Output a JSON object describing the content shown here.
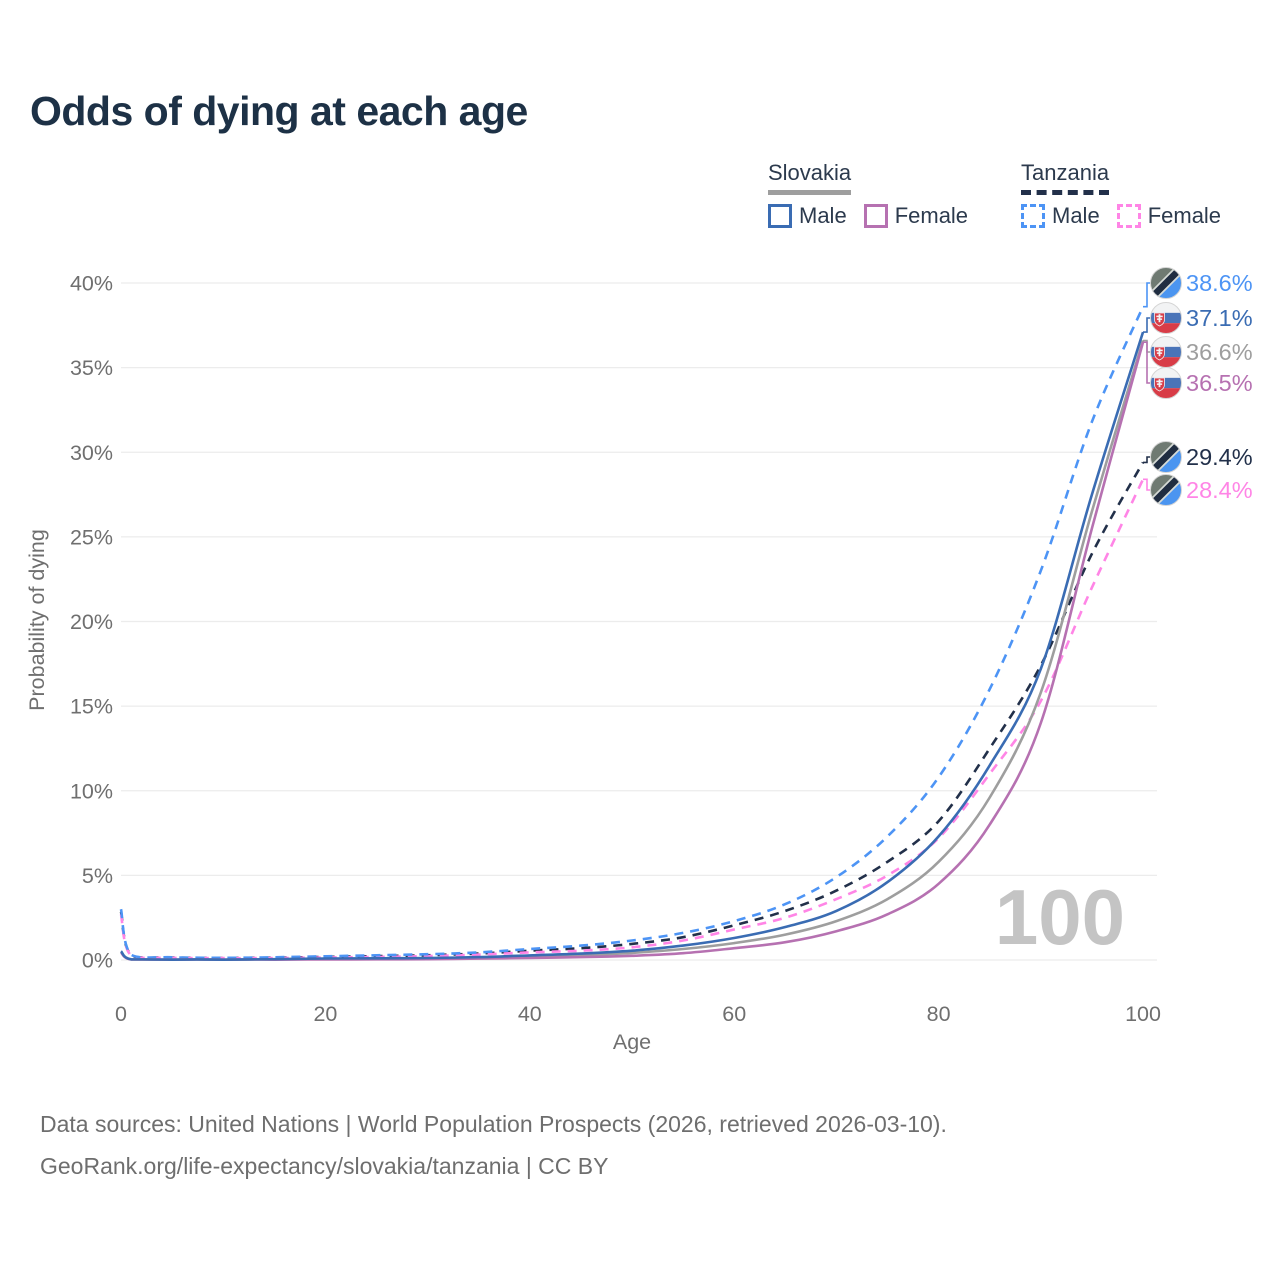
{
  "title": "Odds of dying at each age",
  "watermark": "100",
  "colors": {
    "title": "#1d3146",
    "axis_text": "#6f6f6f",
    "grid": "#ececec",
    "watermark": "#c4c4c4",
    "slovakia_line": "#9e9e9e",
    "tanzania_line": "#22304a",
    "slovakia_male": "#3a6cb3",
    "slovakia_female": "#b671b1",
    "tanzania_male": "#4d94f5",
    "tanzania_female": "#ff85e6"
  },
  "legend": {
    "groups": [
      {
        "id": "slovakia",
        "label": "Slovakia",
        "line_style": "solid",
        "line_color": "#9e9e9e",
        "items": [
          {
            "id": "slovakia-male",
            "label": "Male",
            "color": "#3a6cb3",
            "dashed": false
          },
          {
            "id": "slovakia-female",
            "label": "Female",
            "color": "#b671b1",
            "dashed": false
          }
        ]
      },
      {
        "id": "tanzania",
        "label": "Tanzania",
        "line_style": "dashed",
        "line_color": "#22304a",
        "items": [
          {
            "id": "tanzania-male",
            "label": "Male",
            "color": "#4d94f5",
            "dashed": true
          },
          {
            "id": "tanzania-female",
            "label": "Female",
            "color": "#ff85e6",
            "dashed": true
          }
        ]
      }
    ]
  },
  "chart_data": {
    "type": "line",
    "title": "Odds of dying at each age",
    "xlabel": "Age",
    "ylabel": "Probability of dying",
    "xlim": [
      0,
      100
    ],
    "ylim": [
      0,
      40
    ],
    "x_ticks": [
      0,
      20,
      40,
      60,
      80,
      100
    ],
    "y_ticks": [
      0,
      5,
      10,
      15,
      20,
      25,
      30,
      35,
      40
    ],
    "y_tick_suffix": "%",
    "grid": true,
    "legend_position": "top-right",
    "hovered_age": "100",
    "ages": [
      0,
      1,
      5,
      10,
      15,
      20,
      25,
      30,
      35,
      40,
      45,
      50,
      55,
      60,
      65,
      70,
      75,
      80,
      85,
      90,
      95,
      100
    ],
    "series": [
      {
        "name": "Tanzania Both",
        "country": "Tanzania",
        "sex": "Both",
        "color": "#22304a",
        "dashed": true,
        "end_value": 29.4,
        "end_label": "29.4%",
        "values": [
          2.85,
          0.28,
          0.15,
          0.12,
          0.14,
          0.18,
          0.23,
          0.28,
          0.38,
          0.55,
          0.7,
          0.95,
          1.35,
          2.05,
          2.9,
          4.1,
          5.8,
          8.2,
          12.5,
          17.4,
          24.0,
          29.4
        ]
      },
      {
        "name": "Tanzania Female",
        "country": "Tanzania",
        "sex": "Female",
        "color": "#ff85e6",
        "dashed": true,
        "end_value": 28.4,
        "end_label": "28.4%",
        "values": [
          2.7,
          0.26,
          0.13,
          0.11,
          0.12,
          0.15,
          0.18,
          0.23,
          0.32,
          0.45,
          0.55,
          0.75,
          1.15,
          1.8,
          2.5,
          3.6,
          5.0,
          7.2,
          11.0,
          15.3,
          22.0,
          28.4
        ]
      },
      {
        "name": "Tanzania Male",
        "country": "Tanzania",
        "sex": "Male",
        "color": "#4d94f5",
        "dashed": true,
        "end_value": 38.6,
        "end_label": "38.6%",
        "values": [
          3.0,
          0.3,
          0.16,
          0.13,
          0.16,
          0.22,
          0.28,
          0.34,
          0.45,
          0.65,
          0.85,
          1.15,
          1.6,
          2.3,
          3.3,
          4.9,
          7.3,
          10.8,
          16.0,
          23.0,
          31.8,
          38.6
        ]
      },
      {
        "name": "Slovakia Both",
        "country": "Slovakia",
        "sex": "Both",
        "color": "#9e9e9e",
        "dashed": false,
        "end_value": 36.6,
        "end_label": "36.6%",
        "values": [
          0.49,
          0.035,
          0.02,
          0.02,
          0.04,
          0.06,
          0.07,
          0.09,
          0.13,
          0.2,
          0.28,
          0.42,
          0.65,
          1.0,
          1.5,
          2.3,
          3.6,
          5.8,
          9.6,
          15.8,
          26.5,
          36.6
        ]
      },
      {
        "name": "Slovakia Female",
        "country": "Slovakia",
        "sex": "Female",
        "color": "#b671b1",
        "dashed": false,
        "end_value": 36.5,
        "end_label": "36.5%",
        "values": [
          0.45,
          0.03,
          0.015,
          0.015,
          0.02,
          0.03,
          0.04,
          0.05,
          0.08,
          0.12,
          0.17,
          0.25,
          0.4,
          0.7,
          1.05,
          1.7,
          2.7,
          4.5,
          8.0,
          14.0,
          25.5,
          36.5
        ]
      },
      {
        "name": "Slovakia Male",
        "country": "Slovakia",
        "sex": "Male",
        "color": "#3a6cb3",
        "dashed": false,
        "end_value": 37.1,
        "end_label": "37.1%",
        "values": [
          0.52,
          0.04,
          0.02,
          0.02,
          0.05,
          0.09,
          0.1,
          0.12,
          0.17,
          0.27,
          0.38,
          0.55,
          0.85,
          1.3,
          1.95,
          2.9,
          4.6,
          7.3,
          11.5,
          17.2,
          27.5,
          37.1
        ]
      }
    ]
  },
  "footer": {
    "line1": "Data sources: United Nations | World Population Prospects (2026, retrieved 2026-03-10).",
    "line2": "GeoRank.org/life-expectancy/slovakia/tanzania | CC BY"
  }
}
